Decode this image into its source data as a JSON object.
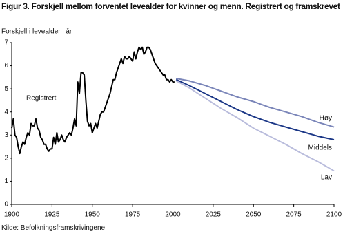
{
  "chart_data": {
    "type": "line",
    "title": "Figur 3. Forskjell mellom forventet levealder for kvinner og menn. Registrert og framskrevet",
    "y_label": "Forskjell i levealder i år",
    "source": "Kilde: Befolkningsframskrivingene.",
    "xlim": [
      1900,
      2100
    ],
    "xticks": [
      1900,
      1925,
      1950,
      1975,
      2000,
      2025,
      2050,
      2075,
      2100
    ],
    "ylim": [
      0,
      7
    ],
    "yticks": [
      0,
      1,
      2,
      3,
      4,
      5,
      6,
      7
    ],
    "grid": false,
    "series": [
      {
        "name": "Registrert",
        "color": "#000000",
        "x": [
          1900,
          1901,
          1902,
          1903,
          1904,
          1905,
          1906,
          1907,
          1908,
          1909,
          1910,
          1911,
          1912,
          1913,
          1914,
          1915,
          1916,
          1917,
          1918,
          1919,
          1920,
          1921,
          1922,
          1923,
          1924,
          1925,
          1926,
          1927,
          1928,
          1929,
          1930,
          1931,
          1932,
          1933,
          1934,
          1935,
          1936,
          1937,
          1938,
          1939,
          1940,
          1941,
          1942,
          1943,
          1944,
          1945,
          1946,
          1947,
          1948,
          1949,
          1950,
          1951,
          1952,
          1953,
          1954,
          1955,
          1956,
          1957,
          1958,
          1959,
          1960,
          1961,
          1962,
          1963,
          1964,
          1965,
          1966,
          1967,
          1968,
          1969,
          1970,
          1971,
          1972,
          1973,
          1974,
          1975,
          1976,
          1977,
          1978,
          1979,
          1980,
          1981,
          1982,
          1983,
          1984,
          1985,
          1986,
          1987,
          1988,
          1989,
          1990,
          1991,
          1992,
          1993,
          1994,
          1995,
          1996,
          1997,
          1998,
          1999,
          2000,
          2001
        ],
        "values": [
          3.3,
          3.7,
          3.0,
          2.9,
          2.5,
          2.2,
          2.5,
          2.7,
          2.6,
          2.9,
          3.1,
          3.0,
          3.5,
          3.4,
          3.4,
          3.7,
          3.3,
          3.2,
          2.9,
          2.8,
          2.6,
          2.6,
          2.4,
          2.3,
          2.4,
          2.4,
          2.9,
          2.6,
          3.1,
          2.7,
          2.8,
          3.0,
          2.8,
          2.7,
          2.9,
          3.0,
          3.1,
          3.0,
          3.3,
          3.7,
          3.4,
          5.3,
          4.8,
          5.7,
          5.7,
          5.6,
          4.5,
          3.6,
          3.4,
          3.5,
          3.1,
          3.3,
          3.5,
          3.3,
          3.6,
          3.9,
          4.0,
          4.0,
          4.2,
          4.4,
          4.6,
          4.8,
          5.1,
          5.4,
          5.4,
          5.7,
          5.9,
          6.1,
          6.3,
          6.1,
          6.4,
          6.3,
          6.3,
          6.4,
          6.3,
          6.2,
          6.6,
          6.3,
          6.6,
          6.8,
          6.7,
          6.8,
          6.5,
          6.6,
          6.8,
          6.8,
          6.7,
          6.5,
          6.3,
          6.1,
          6.0,
          5.9,
          5.8,
          5.7,
          5.6,
          5.6,
          5.4,
          5.4,
          5.3,
          5.4,
          5.3,
          5.3
        ]
      },
      {
        "name": "Høy",
        "color": "#7b86b9",
        "x": [
          2002,
          2010,
          2020,
          2030,
          2040,
          2050,
          2060,
          2070,
          2080,
          2090,
          2100
        ],
        "values": [
          5.45,
          5.35,
          5.15,
          4.9,
          4.65,
          4.45,
          4.2,
          4.0,
          3.8,
          3.55,
          3.35
        ]
      },
      {
        "name": "Middels",
        "color": "#1a3686",
        "x": [
          2002,
          2010,
          2020,
          2030,
          2040,
          2050,
          2060,
          2070,
          2080,
          2090,
          2100
        ],
        "values": [
          5.4,
          5.15,
          4.8,
          4.45,
          4.1,
          3.8,
          3.55,
          3.35,
          3.15,
          2.95,
          2.8
        ]
      },
      {
        "name": "Lav",
        "color": "#b9bcdc",
        "x": [
          2002,
          2010,
          2020,
          2030,
          2040,
          2050,
          2060,
          2070,
          2080,
          2090,
          2100
        ],
        "values": [
          5.35,
          5.05,
          4.6,
          4.15,
          3.75,
          3.3,
          2.95,
          2.6,
          2.2,
          1.85,
          1.45
        ]
      }
    ]
  }
}
